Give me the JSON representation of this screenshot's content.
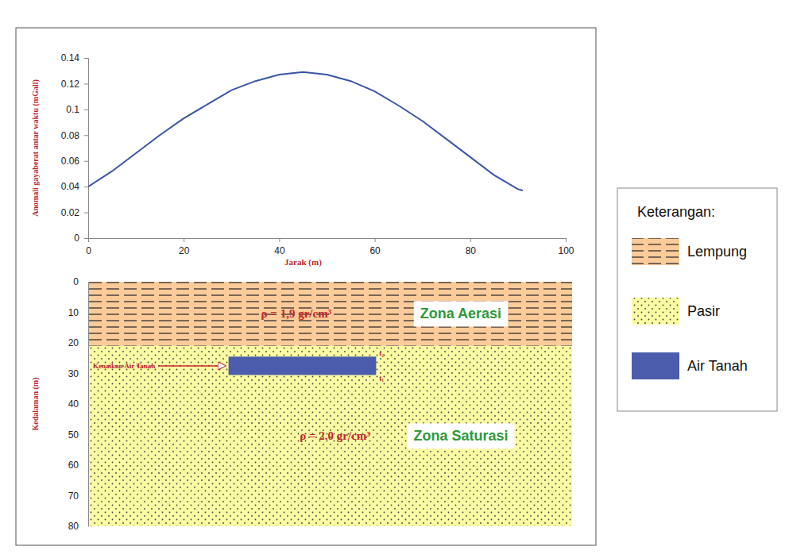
{
  "chart_data": [
    {
      "type": "line",
      "x_label": "Jarak (m)",
      "y_label": "Anomali gayaberat antar waktu (mGall)",
      "x": [
        0,
        5,
        10,
        15,
        20,
        25,
        30,
        35,
        40,
        45,
        50,
        55,
        60,
        65,
        70,
        75,
        80,
        85,
        90,
        91
      ],
      "values": [
        0.04,
        0.052,
        0.066,
        0.08,
        0.093,
        0.104,
        0.115,
        0.122,
        0.127,
        0.129,
        0.127,
        0.122,
        0.114,
        0.103,
        0.091,
        0.077,
        0.063,
        0.049,
        0.038,
        0.037
      ],
      "color": "#3b56a5",
      "xlim": [
        0,
        100
      ],
      "xticks": [
        0,
        20,
        40,
        60,
        80,
        100
      ],
      "ylim": [
        0,
        0.14
      ],
      "yticks": [
        0,
        0.02,
        0.04,
        0.06,
        0.08,
        0.1,
        0.12,
        0.14
      ],
      "grid": false
    },
    {
      "type": "cross-section",
      "y_label": "Kedalaman (m)",
      "xlim": [
        0,
        100
      ],
      "ylim": [
        0,
        80
      ],
      "yticks": [
        0,
        10,
        20,
        30,
        40,
        50,
        60,
        70,
        80
      ],
      "tick_labels": "y",
      "layers": [
        {
          "name": "Lempung",
          "top": 0,
          "bottom": 21,
          "density": "ρ = 1,9 gr/cm³",
          "zone": "Zona Aerasi",
          "color": "#fbcb9a"
        },
        {
          "name": "Pasir",
          "top": 21,
          "bottom": 80,
          "density": "ρ = 2.0 gr/cm³",
          "zone": "Zona Saturasi",
          "color": "#fbfba4"
        }
      ],
      "groundwater": {
        "name": "Air Tanah",
        "x": [
          29,
          59.5
        ],
        "depth": [
          24.5,
          30.5
        ],
        "color": "#4a5cab",
        "label": "Kenaikan Air Tanah",
        "time_labels": [
          "t₂",
          "t₁"
        ]
      },
      "legend": "right",
      "legend_title": "Keterangan:"
    }
  ]
}
